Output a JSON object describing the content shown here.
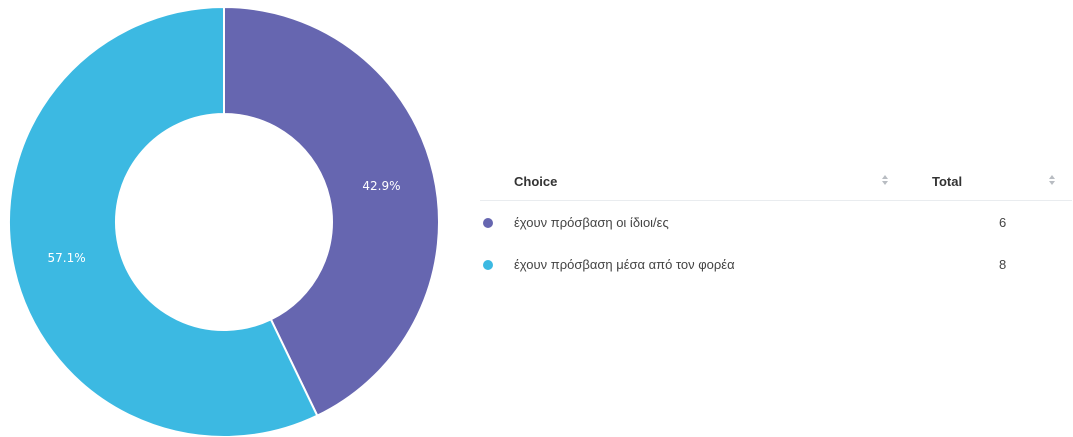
{
  "chart_data": {
    "type": "pie",
    "style": "donut",
    "categories": [
      "έχουν πρόσβαση οι ίδιοι/ες",
      "έχουν πρόσβαση μέσα από τον φορέα"
    ],
    "values": [
      6,
      8
    ],
    "percent_labels": [
      "42.9%",
      "57.1%"
    ],
    "colors": [
      "#6666b0",
      "#3cb9e2"
    ]
  },
  "table": {
    "header": {
      "choice": "Choice",
      "total": "Total"
    },
    "rows": [
      {
        "label": "έχουν πρόσβαση οι ίδιοι/ες",
        "total": "6",
        "color": "#6666b0"
      },
      {
        "label": "έχουν πρόσβαση μέσα από τον φορέα",
        "total": "8",
        "color": "#3cb9e2"
      }
    ]
  }
}
